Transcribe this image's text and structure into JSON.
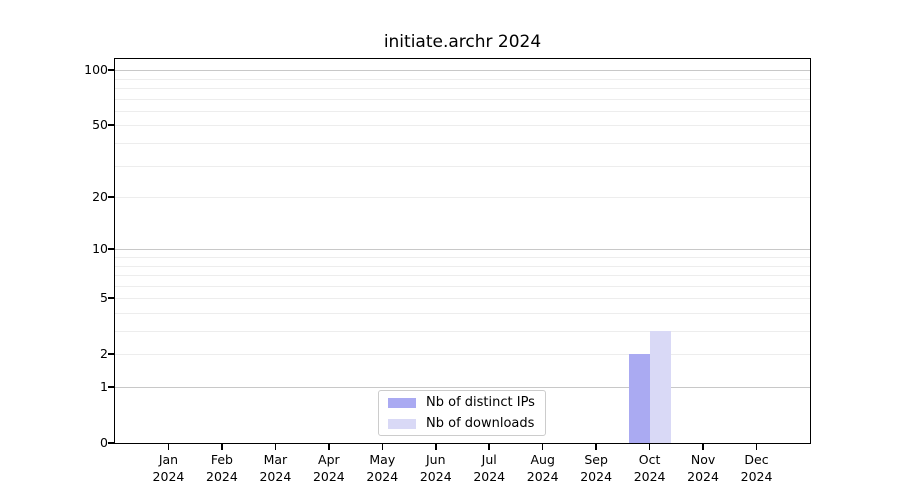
{
  "figure": {
    "background": "#ffffff",
    "spine_color": "#000000"
  },
  "chart_data": {
    "type": "bar",
    "title": "initiate.archr 2024",
    "categories": [
      "Jan",
      "Feb",
      "Mar",
      "Apr",
      "May",
      "Jun",
      "Jul",
      "Aug",
      "Sep",
      "Oct",
      "Nov",
      "Dec"
    ],
    "category_year": "2024",
    "series": [
      {
        "name": "Nb of distinct IPs",
        "color": "#aaaaf2",
        "values": [
          0,
          0,
          0,
          0,
          0,
          0,
          0,
          0,
          0,
          2,
          0,
          0
        ]
      },
      {
        "name": "Nb of downloads",
        "color": "#d9d9f6",
        "values": [
          0,
          0,
          0,
          0,
          0,
          0,
          0,
          0,
          0,
          3,
          0,
          0
        ]
      }
    ],
    "xlabel": "",
    "ylabel": "",
    "yscale": "log1p",
    "ylim": [
      0,
      117
    ],
    "ytick_values": [
      100,
      50,
      20,
      10,
      5,
      2,
      1,
      0
    ],
    "grid": {
      "major_values": [
        1,
        10,
        100
      ],
      "minor_values": [
        2,
        3,
        4,
        5,
        6,
        7,
        8,
        9,
        20,
        30,
        40,
        50,
        60,
        70,
        80,
        90
      ],
      "major_color": "#c8c8c8",
      "minor_color": "#ededed"
    },
    "legend_position": "bottom-center"
  }
}
